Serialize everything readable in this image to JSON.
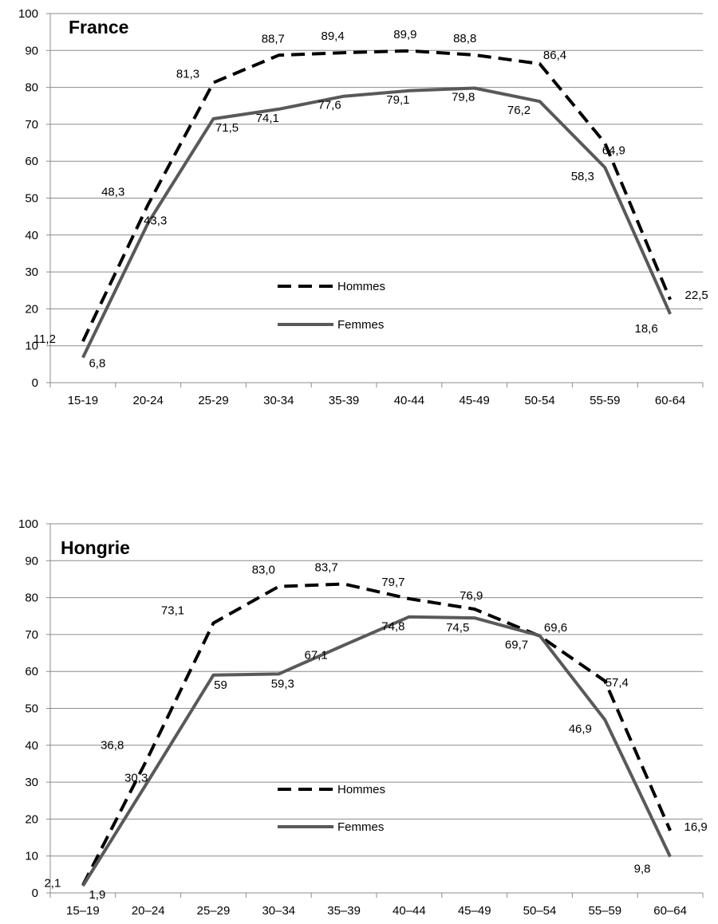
{
  "chart_data": [
    {
      "type": "line",
      "title": "France",
      "categories": [
        "15-19",
        "20-24",
        "25-29",
        "30-34",
        "35-39",
        "40-44",
        "45-49",
        "50-54",
        "55-59",
        "60-64"
      ],
      "ylim": [
        0,
        100
      ],
      "yticks": [
        "0",
        "10",
        "20",
        "30",
        "40",
        "50",
        "60",
        "70",
        "80",
        "90",
        "100"
      ],
      "grid": true,
      "legend_position": "center",
      "series": [
        {
          "name": "Hommes",
          "style": "dashed",
          "color": "#000000",
          "values": [
            11.2,
            48.3,
            81.3,
            88.7,
            89.4,
            89.9,
            88.8,
            86.4,
            64.9,
            22.5
          ],
          "labels": [
            "11,2",
            "48,3",
            "81,3",
            "88,7",
            "89,4",
            "89,9",
            "88,8",
            "86,4",
            "64,9",
            "22,5"
          ]
        },
        {
          "name": "Femmes",
          "style": "solid",
          "color": "#595959",
          "values": [
            6.8,
            43.3,
            71.5,
            74.1,
            77.6,
            79.1,
            79.8,
            76.2,
            58.3,
            18.6
          ],
          "labels": [
            "6,8",
            "43,3",
            "71,5",
            "74,1",
            "77,6",
            "79,1",
            "79,8",
            "76,2",
            "58,3",
            "18,6"
          ]
        }
      ]
    },
    {
      "type": "line",
      "title": "Hongrie",
      "categories": [
        "15–19",
        "20–24",
        "25–29",
        "30–34",
        "35–39",
        "40–44",
        "45–49",
        "50–54",
        "55–59",
        "60–64"
      ],
      "ylim": [
        0,
        100
      ],
      "yticks": [
        "0",
        "10",
        "20",
        "30",
        "40",
        "50",
        "60",
        "70",
        "80",
        "90",
        "100"
      ],
      "grid": true,
      "legend_position": "center",
      "series": [
        {
          "name": "Hommes",
          "style": "dashed",
          "color": "#000000",
          "values": [
            2.1,
            36.8,
            73.1,
            83.0,
            83.7,
            79.7,
            76.9,
            69.6,
            57.4,
            16.9
          ],
          "labels": [
            "2,1",
            "36,8",
            "73,1",
            "83,0",
            "83,7",
            "79,7",
            "76,9",
            "69,6",
            "57,4",
            "16,9"
          ]
        },
        {
          "name": "Femmes",
          "style": "solid",
          "color": "#595959",
          "values": [
            1.9,
            30.3,
            59,
            59.3,
            67.1,
            74.8,
            74.5,
            69.7,
            46.9,
            9.8
          ],
          "labels": [
            "1,9",
            "30,3",
            "59",
            "59,3",
            "67,1",
            "74,8",
            "74,5",
            "69,7",
            "46,9",
            "9,8"
          ]
        }
      ]
    }
  ]
}
